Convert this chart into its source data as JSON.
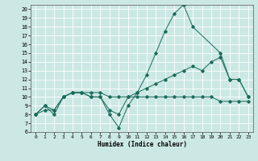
{
  "xlabel": "Humidex (Indice chaleur)",
  "background_color": "#cbe8e4",
  "line_color": "#1a6b5a",
  "grid_color": "#ffffff",
  "xlim": [
    -0.5,
    23.5
  ],
  "ylim": [
    6,
    20.5
  ],
  "yticks": [
    6,
    7,
    8,
    9,
    10,
    11,
    12,
    13,
    14,
    15,
    16,
    17,
    18,
    19,
    20
  ],
  "xticks": [
    0,
    1,
    2,
    3,
    4,
    5,
    6,
    7,
    8,
    9,
    10,
    11,
    12,
    13,
    14,
    15,
    16,
    17,
    18,
    19,
    20,
    21,
    22,
    23
  ],
  "series": [
    {
      "x": [
        0,
        1,
        2,
        3,
        4,
        5,
        6,
        7,
        8,
        9,
        10,
        11,
        12,
        13,
        14,
        15,
        16,
        17,
        20,
        21,
        22,
        23
      ],
      "y": [
        8,
        9,
        8,
        10,
        10.5,
        10.5,
        10,
        10,
        8,
        6.5,
        9,
        10.5,
        12.5,
        15,
        17.5,
        19.5,
        20.5,
        18,
        15,
        12,
        12,
        10
      ]
    },
    {
      "x": [
        0,
        1,
        2,
        3,
        4,
        5,
        6,
        7,
        8,
        9,
        10,
        11,
        12,
        13,
        14,
        15,
        16,
        17,
        18,
        19,
        20,
        21,
        22,
        23
      ],
      "y": [
        8,
        9,
        8.5,
        10,
        10.5,
        10.5,
        10,
        10,
        8.5,
        8,
        10,
        10.5,
        11,
        11.5,
        12,
        12.5,
        13,
        13.5,
        13,
        14,
        14.5,
        12,
        12,
        10
      ]
    },
    {
      "x": [
        0,
        1,
        2,
        3,
        4,
        5,
        6,
        7,
        8,
        9,
        10,
        11,
        12,
        13,
        14,
        15,
        16,
        17,
        18,
        19,
        20,
        21,
        22,
        23
      ],
      "y": [
        8,
        8.5,
        8.5,
        10,
        10.5,
        10.5,
        10.5,
        10.5,
        10,
        10,
        10,
        10,
        10,
        10,
        10,
        10,
        10,
        10,
        10,
        10,
        9.5,
        9.5,
        9.5,
        9.5
      ]
    }
  ]
}
